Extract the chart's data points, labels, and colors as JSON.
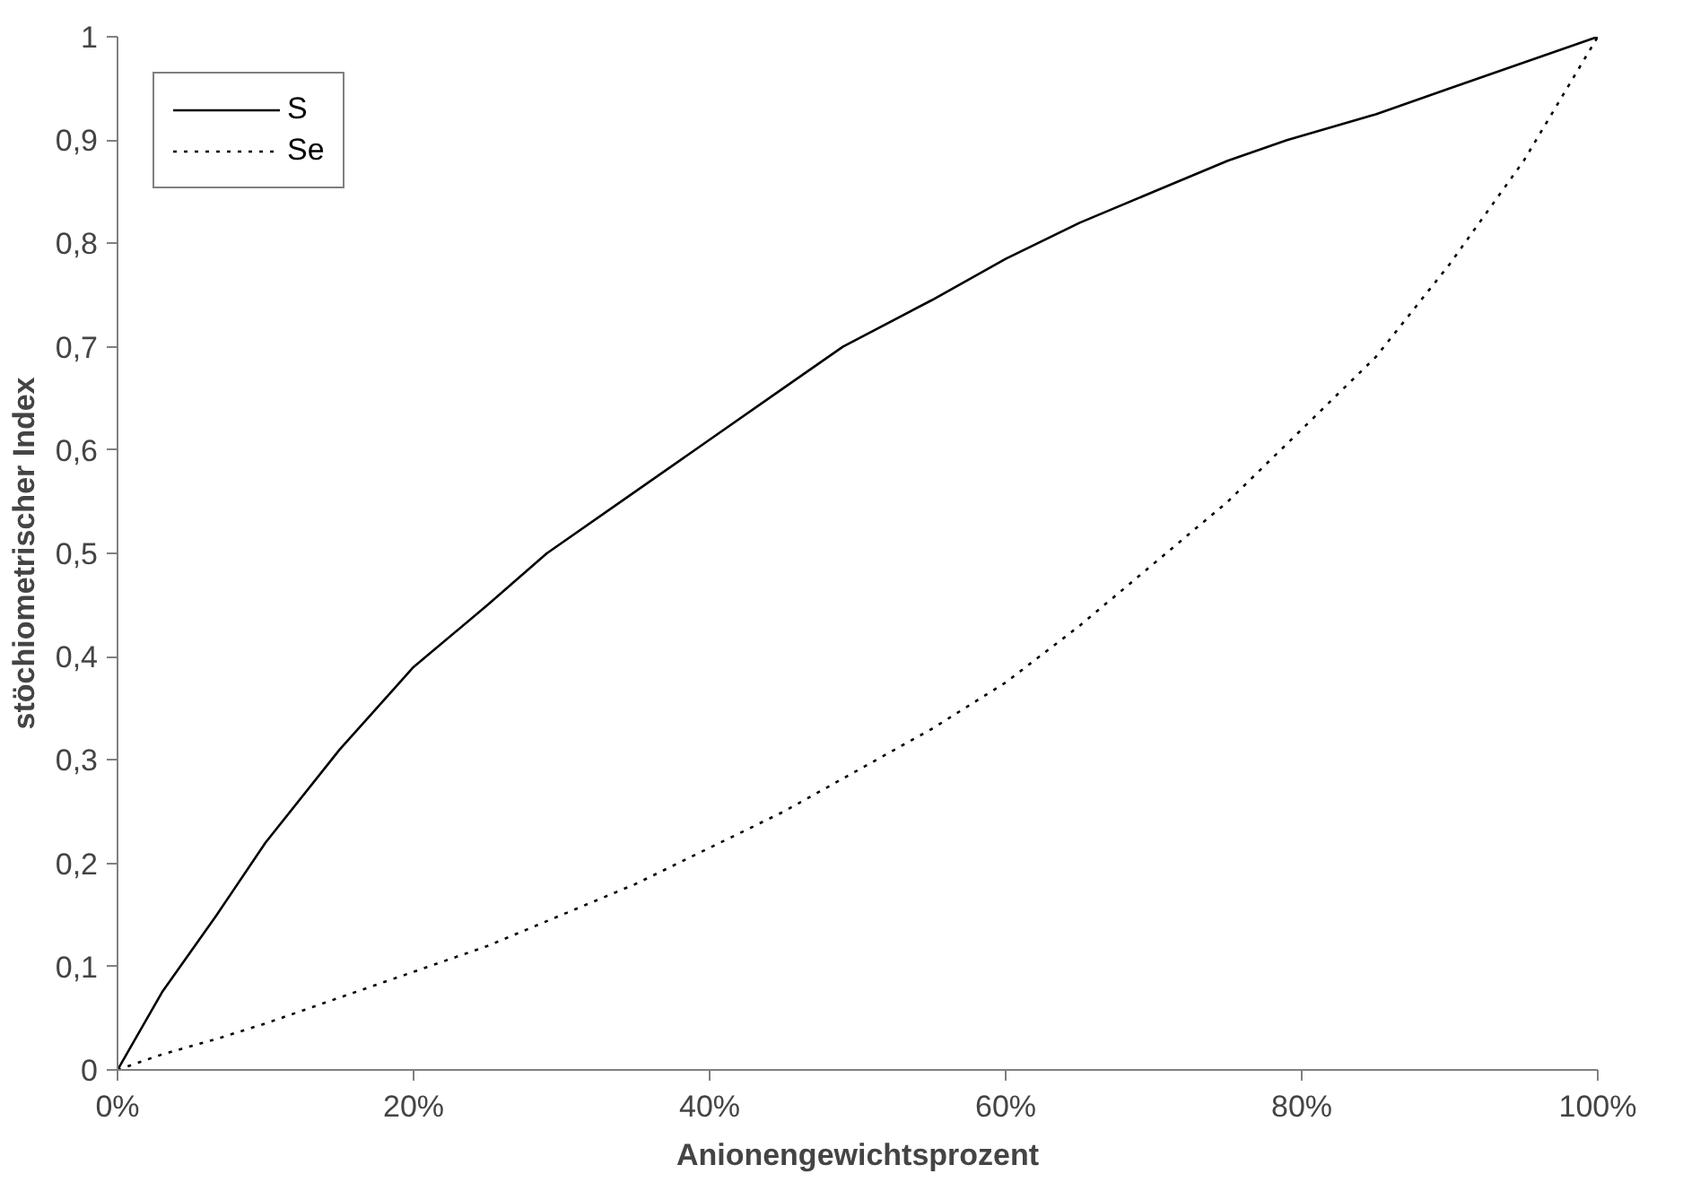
{
  "chart_data": {
    "type": "line",
    "xlabel": "Anionengewichtsprozent",
    "ylabel": "stöchiometrischer Index",
    "xlim": [
      0,
      100
    ],
    "ylim": [
      0,
      1
    ],
    "xticks": [
      {
        "value": 0,
        "label": "0%"
      },
      {
        "value": 20,
        "label": "20%"
      },
      {
        "value": 40,
        "label": "40%"
      },
      {
        "value": 60,
        "label": "60%"
      },
      {
        "value": 80,
        "label": "80%"
      },
      {
        "value": 100,
        "label": "100%"
      }
    ],
    "yticks": [
      0,
      {
        "value": 0.1,
        "label": "0,1"
      },
      {
        "value": 0.2,
        "label": "0,2"
      },
      {
        "value": 0.3,
        "label": "0,3"
      },
      {
        "value": 0.4,
        "label": "0,4"
      },
      {
        "value": 0.5,
        "label": "0,5"
      },
      {
        "value": 0.6,
        "label": "0,6"
      },
      {
        "value": 0.7,
        "label": "0,7"
      },
      {
        "value": 0.8,
        "label": "0,8"
      },
      {
        "value": 0.9,
        "label": "0,9"
      },
      1
    ],
    "grid": false,
    "legend": "top left",
    "marker": "none",
    "series": [
      {
        "name": "S",
        "color": "#000000",
        "line_style": "solid",
        "x": [
          0,
          3,
          6.7,
          10,
          15,
          20,
          25,
          29,
          35,
          40,
          45,
          49,
          55,
          60,
          65,
          70,
          75,
          79,
          85,
          90,
          95,
          100
        ],
        "values": [
          0,
          0.075,
          0.15,
          0.22,
          0.31,
          0.39,
          0.45,
          0.5,
          0.56,
          0.61,
          0.66,
          0.7,
          0.745,
          0.785,
          0.82,
          0.85,
          0.88,
          0.9,
          0.925,
          0.95,
          0.975,
          1
        ]
      },
      {
        "name": "Se",
        "color": "#000000",
        "line_style": "dotted",
        "x": [
          0,
          3,
          6.7,
          10,
          15,
          20,
          25,
          30,
          35,
          40,
          45,
          50,
          55,
          60,
          65,
          70,
          75,
          80,
          85,
          90,
          95,
          100
        ],
        "values": [
          0,
          0.015,
          0.03,
          0.045,
          0.07,
          0.095,
          0.12,
          0.15,
          0.18,
          0.215,
          0.25,
          0.29,
          0.33,
          0.375,
          0.43,
          0.49,
          0.55,
          0.62,
          0.69,
          0.78,
          0.88,
          1
        ]
      }
    ]
  }
}
